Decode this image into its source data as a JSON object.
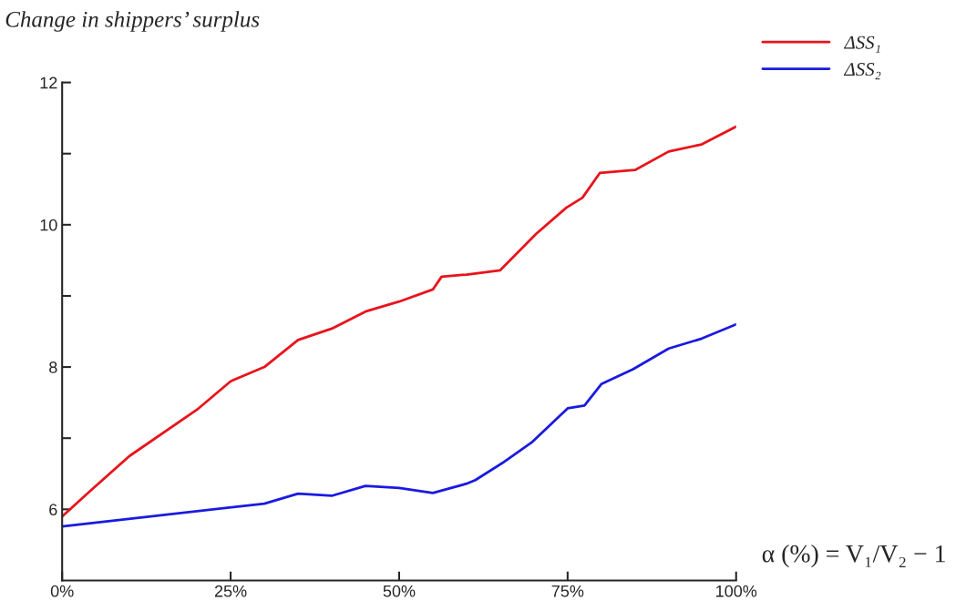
{
  "chart_data": {
    "type": "line",
    "title": "Change in shippers’ surplus",
    "xlim": [
      0,
      100
    ],
    "xticks": [
      {
        "value": 0,
        "label": "0%"
      },
      {
        "value": 25,
        "label": "25%"
      },
      {
        "value": 50,
        "label": "50%"
      },
      {
        "value": 75,
        "label": "75%"
      },
      {
        "value": 100,
        "label": "100%"
      }
    ],
    "ylim": [
      5,
      12
    ],
    "yticks": [
      {
        "value": 6,
        "label": "6"
      },
      {
        "value": 7,
        "label": null
      },
      {
        "value": 8,
        "label": "8"
      },
      {
        "value": 9,
        "label": null
      },
      {
        "value": 10,
        "label": "10"
      },
      {
        "value": 11,
        "label": null
      },
      {
        "value": 12,
        "label": "12"
      }
    ],
    "series": [
      {
        "name": "ΔSS₁",
        "color": "#e8141c",
        "x": [
          0,
          4.3,
          10,
          20,
          25,
          30,
          35,
          40,
          45,
          50,
          55,
          56.3,
          60,
          65,
          70.3,
          74.8,
          77.2,
          79.8,
          85,
          90,
          94.9,
          100
        ],
        "values": [
          5.9,
          6.27,
          6.75,
          7.4,
          7.8,
          8.0,
          8.38,
          8.54,
          8.78,
          8.92,
          9.09,
          9.27,
          9.3,
          9.36,
          9.87,
          10.24,
          10.38,
          10.73,
          10.77,
          11.03,
          11.13,
          11.38
        ]
      },
      {
        "name": "ΔSS₂",
        "color": "#1a1ae0",
        "x": [
          0,
          30,
          35,
          40,
          45,
          50,
          55,
          60,
          61.3,
          65.3,
          69.8,
          75,
          77.5,
          80,
          84.7,
          90,
          94.9,
          100
        ],
        "values": [
          5.76,
          6.08,
          6.22,
          6.19,
          6.33,
          6.3,
          6.23,
          6.36,
          6.41,
          6.65,
          6.95,
          7.42,
          7.46,
          7.76,
          7.97,
          8.26,
          8.4,
          8.6
        ]
      }
    ],
    "annotations": [
      "α (%) = V₁/V₂ − 1"
    ],
    "legend": "top right",
    "grid": false,
    "marker": "none",
    "line_style": "solid"
  }
}
